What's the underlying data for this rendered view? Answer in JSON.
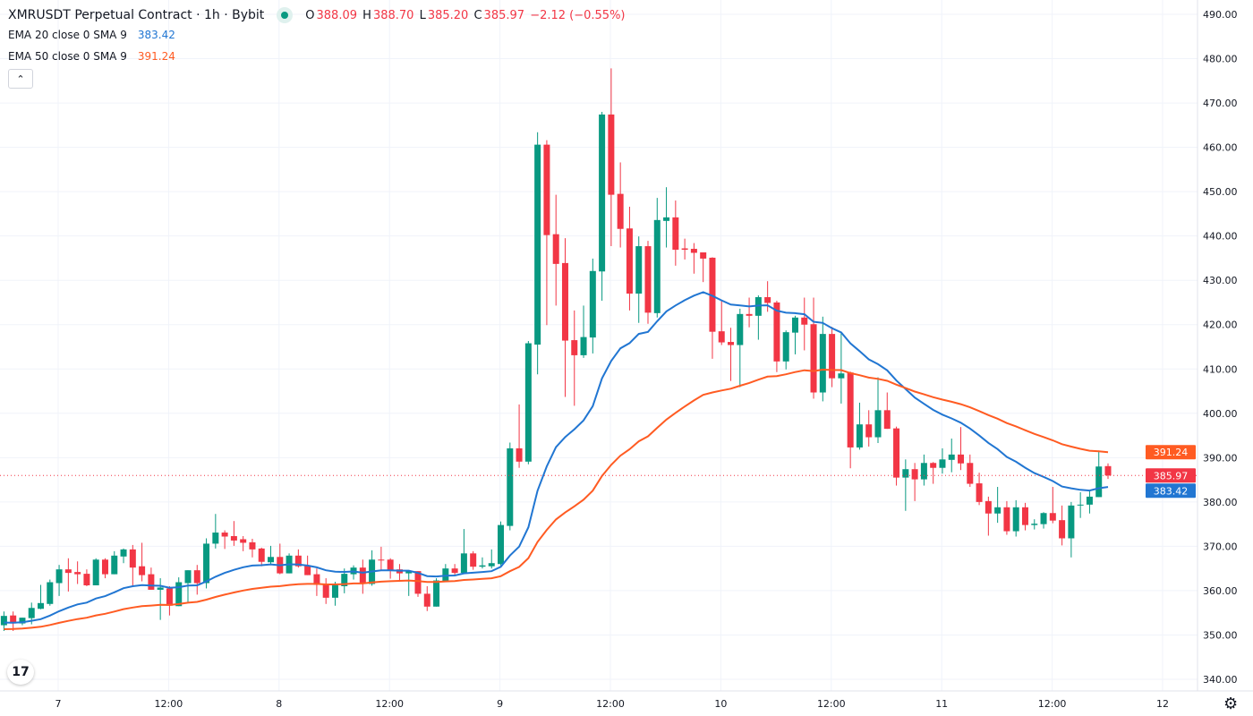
{
  "header": {
    "title": "XMRUSDT Perpetual Contract · 1h · Bybit",
    "status_color": "#089981",
    "open_label": "O",
    "open": "388.09",
    "high_label": "H",
    "high": "388.70",
    "low_label": "L",
    "low": "385.20",
    "close_label": "C",
    "close": "385.97",
    "change": "−2.12 (−0.55%)"
  },
  "indicators": [
    {
      "name": "EMA 20 close 0 SMA 9",
      "value": "383.42",
      "color": "#2176d2",
      "period": 20
    },
    {
      "name": "EMA 50 close 0 SMA 9",
      "value": "391.24",
      "color": "#ff5b22",
      "period": 50
    }
  ],
  "collapse_icon": "chevron-up-icon",
  "logo": "TV",
  "settings_icon": "gear-icon",
  "chart_data": {
    "type": "candlestick",
    "interval": "1h",
    "up_color": "#089981",
    "down_color": "#f23645",
    "ylim": [
      340,
      490
    ],
    "y_ticks": [
      "490.00",
      "480.00",
      "470.00",
      "460.00",
      "450.00",
      "440.00",
      "430.00",
      "420.00",
      "410.00",
      "400.00",
      "390.00",
      "380.00",
      "370.00",
      "360.00",
      "350.00",
      "340.00"
    ],
    "x_ticks": [
      "7",
      "12:00",
      "8",
      "12:00",
      "9",
      "12:00",
      "10",
      "12:00",
      "11",
      "12:00",
      "12"
    ],
    "grid": true,
    "last_price": "385.97",
    "price_labels": [
      {
        "text": "391.24",
        "color": "#ff5b22"
      },
      {
        "text": "385.97",
        "color": "#f23645"
      },
      {
        "text": "383.42",
        "color": "#2176d2"
      }
    ],
    "ohlc": [
      [
        352.2,
        355.3,
        350.9,
        354.3
      ],
      [
        354.4,
        355.3,
        350.9,
        352.6
      ],
      [
        352.6,
        353.9,
        352.2,
        353.9
      ],
      [
        353.8,
        357.3,
        352.4,
        356.1
      ],
      [
        355.9,
        361.3,
        355.8,
        357.2
      ],
      [
        357.0,
        362.5,
        356.6,
        361.9
      ],
      [
        361.7,
        365.8,
        358.8,
        364.8
      ],
      [
        364.8,
        367.3,
        359.8,
        364.0
      ],
      [
        364.2,
        366.6,
        361.5,
        363.7
      ],
      [
        363.8,
        364.8,
        361.0,
        361.2
      ],
      [
        361.2,
        367.3,
        361.2,
        367.0
      ],
      [
        367.0,
        367.3,
        362.8,
        363.7
      ],
      [
        363.7,
        368.9,
        363.7,
        367.9
      ],
      [
        367.7,
        369.5,
        366.2,
        369.3
      ],
      [
        369.3,
        370.3,
        361.0,
        365.2
      ],
      [
        365.5,
        370.8,
        362.1,
        363.5
      ],
      [
        363.7,
        365.2,
        360.2,
        360.2
      ],
      [
        360.2,
        362.8,
        353.4,
        360.7
      ],
      [
        360.5,
        361.0,
        354.4,
        356.6
      ],
      [
        356.5,
        363.0,
        356.5,
        361.9
      ],
      [
        361.7,
        364.6,
        357.3,
        364.6
      ],
      [
        364.6,
        365.8,
        359.1,
        361.7
      ],
      [
        361.7,
        371.8,
        360.5,
        370.6
      ],
      [
        370.6,
        377.3,
        369.5,
        373.1
      ],
      [
        373.1,
        373.6,
        369.4,
        372.2
      ],
      [
        372.3,
        375.7,
        370.1,
        371.3
      ],
      [
        371.6,
        372.3,
        368.9,
        370.8
      ],
      [
        370.9,
        371.7,
        367.5,
        369.3
      ],
      [
        369.5,
        369.7,
        365.5,
        366.5
      ],
      [
        366.4,
        370.1,
        365.8,
        367.6
      ],
      [
        367.6,
        370.6,
        363.7,
        363.9
      ],
      [
        363.9,
        368.4,
        363.9,
        367.9
      ],
      [
        367.9,
        369.3,
        365.2,
        365.5
      ],
      [
        365.7,
        367.9,
        363.5,
        363.5
      ],
      [
        363.7,
        365.0,
        358.8,
        361.3
      ],
      [
        361.3,
        362.8,
        357.0,
        358.4
      ],
      [
        358.4,
        362.0,
        356.6,
        361.2
      ],
      [
        361.0,
        365.0,
        359.4,
        363.8
      ],
      [
        363.7,
        365.7,
        362.5,
        365.2
      ],
      [
        365.2,
        367.0,
        359.3,
        361.5
      ],
      [
        361.5,
        369.1,
        361.1,
        367.0
      ],
      [
        367.0,
        369.9,
        364.7,
        366.8
      ],
      [
        367.0,
        367.3,
        362.7,
        364.6
      ],
      [
        364.8,
        366.0,
        362.1,
        363.9
      ],
      [
        363.9,
        364.5,
        358.8,
        364.5
      ],
      [
        364.4,
        364.4,
        358.6,
        359.3
      ],
      [
        359.3,
        361.0,
        355.4,
        356.4
      ],
      [
        356.4,
        362.8,
        356.4,
        362.3
      ],
      [
        362.2,
        366.0,
        362.0,
        365.0
      ],
      [
        365.0,
        366.0,
        363.4,
        364.0
      ],
      [
        364.0,
        373.9,
        364.0,
        368.4
      ],
      [
        368.4,
        368.9,
        364.7,
        365.4
      ],
      [
        365.4,
        367.5,
        365.0,
        365.7
      ],
      [
        365.5,
        369.3,
        365.0,
        366.2
      ],
      [
        366.0,
        375.6,
        365.7,
        374.8
      ],
      [
        374.6,
        393.4,
        373.6,
        392.1
      ],
      [
        392.1,
        402.0,
        387.7,
        389.1
      ],
      [
        389.1,
        416.3,
        388.5,
        415.8
      ],
      [
        415.5,
        463.4,
        408.8,
        460.6
      ],
      [
        460.6,
        461.6,
        419.9,
        440.2
      ],
      [
        440.4,
        449.3,
        424.3,
        433.7
      ],
      [
        433.9,
        439.5,
        403.7,
        416.4
      ],
      [
        416.5,
        423.2,
        401.7,
        413.1
      ],
      [
        413.1,
        424.3,
        412.5,
        417.2
      ],
      [
        417.1,
        434.9,
        413.5,
        432.1
      ],
      [
        432.0,
        468.0,
        425.4,
        467.4
      ],
      [
        467.4,
        477.8,
        437.7,
        449.3
      ],
      [
        449.5,
        456.6,
        437.4,
        441.6
      ],
      [
        441.7,
        446.6,
        423.2,
        427.0
      ],
      [
        427.0,
        439.9,
        420.4,
        437.7
      ],
      [
        437.7,
        438.9,
        420.2,
        422.7
      ],
      [
        422.6,
        448.6,
        421.6,
        443.6
      ],
      [
        443.4,
        451.0,
        437.4,
        444.2
      ],
      [
        444.2,
        448.0,
        433.3,
        436.9
      ],
      [
        437.2,
        439.4,
        434.7,
        436.9
      ],
      [
        437.1,
        438.4,
        431.5,
        436.2
      ],
      [
        436.3,
        436.3,
        429.6,
        434.9
      ],
      [
        435.1,
        435.2,
        412.3,
        418.4
      ],
      [
        418.5,
        425.6,
        415.4,
        416.0
      ],
      [
        416.1,
        419.3,
        407.3,
        415.4
      ],
      [
        415.4,
        423.6,
        405.9,
        422.4
      ],
      [
        422.4,
        426.1,
        419.4,
        422.0
      ],
      [
        422.0,
        426.6,
        416.6,
        426.2
      ],
      [
        426.2,
        429.8,
        422.9,
        424.9
      ],
      [
        425.0,
        425.4,
        409.3,
        411.7
      ],
      [
        411.7,
        418.7,
        409.9,
        418.3
      ],
      [
        418.2,
        422.0,
        413.3,
        421.6
      ],
      [
        421.6,
        426.1,
        414.2,
        420.0
      ],
      [
        420.1,
        426.1,
        403.3,
        404.7
      ],
      [
        404.7,
        421.8,
        402.7,
        417.9
      ],
      [
        417.9,
        419.5,
        405.9,
        407.9
      ],
      [
        407.9,
        418.3,
        402.2,
        409.0
      ],
      [
        409.2,
        409.4,
        387.6,
        392.3
      ],
      [
        392.3,
        402.4,
        391.8,
        397.5
      ],
      [
        397.5,
        400.7,
        392.5,
        394.6
      ],
      [
        394.6,
        408.1,
        393.3,
        400.7
      ],
      [
        400.7,
        404.7,
        396.5,
        396.5
      ],
      [
        396.6,
        397.0,
        383.7,
        385.5
      ],
      [
        385.5,
        389.6,
        378.0,
        387.4
      ],
      [
        387.4,
        388.8,
        380.2,
        385.1
      ],
      [
        385.1,
        390.7,
        383.7,
        388.8
      ],
      [
        388.8,
        389.0,
        384.1,
        387.7
      ],
      [
        387.7,
        392.1,
        386.4,
        389.6
      ],
      [
        389.5,
        394.3,
        386.7,
        390.7
      ],
      [
        390.7,
        396.9,
        387.2,
        388.7
      ],
      [
        388.8,
        390.7,
        383.4,
        384.1
      ],
      [
        384.2,
        386.6,
        379.3,
        380.0
      ],
      [
        380.2,
        381.2,
        372.4,
        377.4
      ],
      [
        377.4,
        383.4,
        375.3,
        378.8
      ],
      [
        378.8,
        380.2,
        372.6,
        373.4
      ],
      [
        373.4,
        380.4,
        372.2,
        378.8
      ],
      [
        378.8,
        379.8,
        373.6,
        374.8
      ],
      [
        374.8,
        376.1,
        373.8,
        375.1
      ],
      [
        375.0,
        377.7,
        374.0,
        377.5
      ],
      [
        377.5,
        383.4,
        375.2,
        375.8
      ],
      [
        375.9,
        379.2,
        370.2,
        371.8
      ],
      [
        371.8,
        380.0,
        367.5,
        379.2
      ],
      [
        379.2,
        382.2,
        376.4,
        379.4
      ],
      [
        379.4,
        382.5,
        377.4,
        381.2
      ],
      [
        381.1,
        391.6,
        381.1,
        388.0
      ],
      [
        388.09,
        388.7,
        385.2,
        385.97
      ]
    ]
  }
}
